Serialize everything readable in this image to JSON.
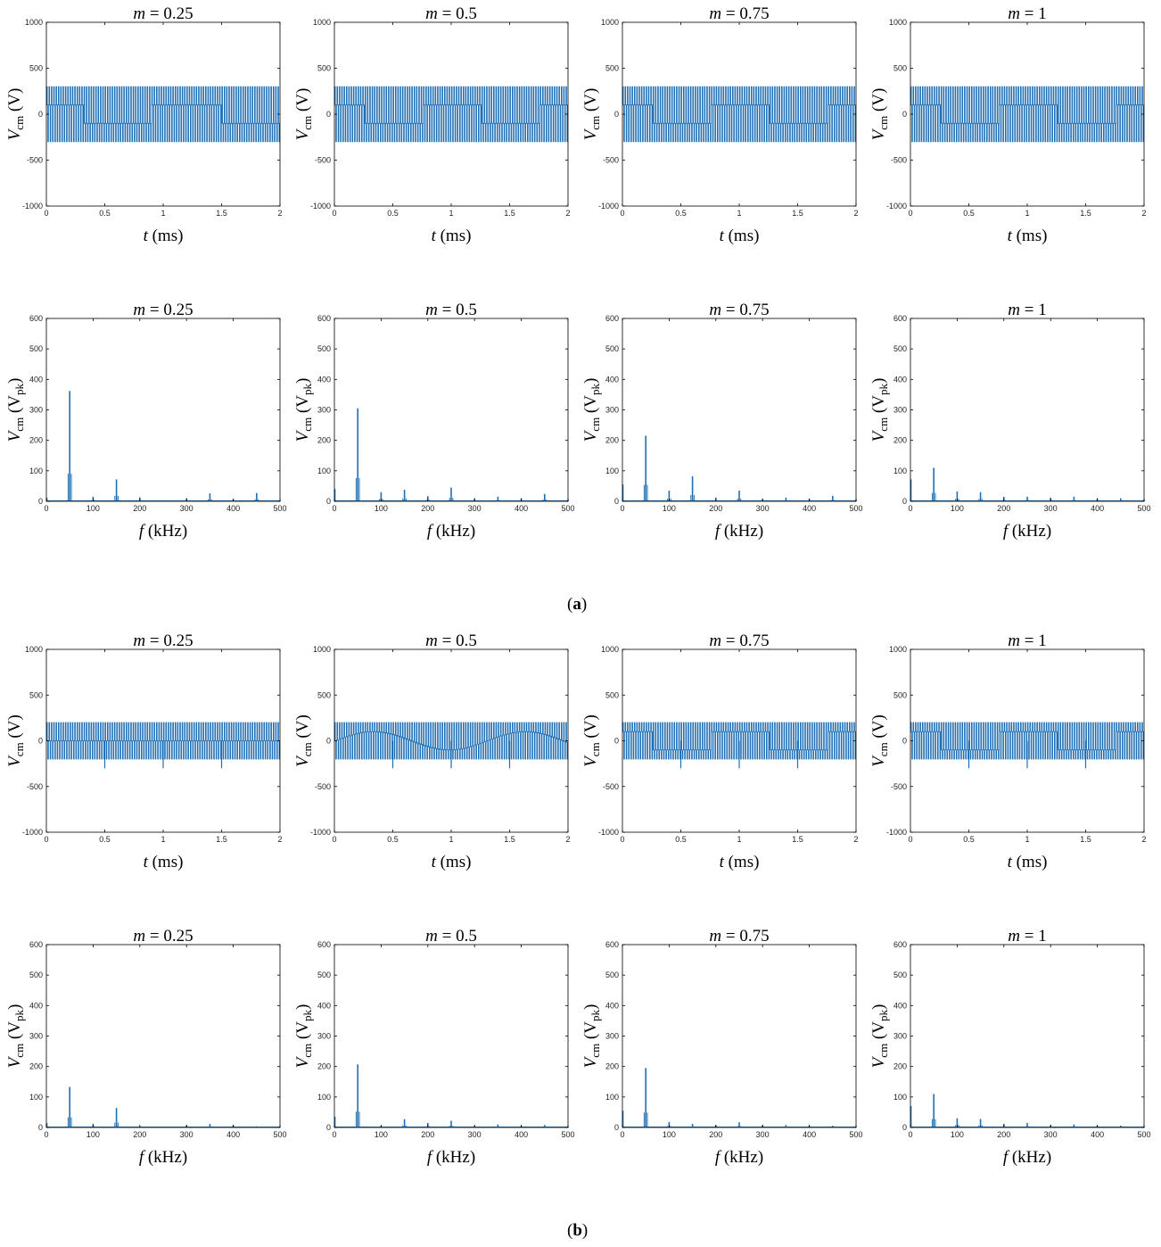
{
  "panel_labels": {
    "a": "a",
    "b": "b"
  },
  "colors": {
    "trace": "#1f6fb5",
    "axes": "#000000"
  },
  "chart_data": [
    {
      "id": "a-t-1",
      "type": "line",
      "title_var": "m",
      "title_value": "0.25",
      "xlabel_var": "t",
      "xlabel_unit": "(ms)",
      "ylabel_var": "V",
      "ylabel_sub": "cm",
      "ylabel_unit": "(V)",
      "xlim": [
        0,
        2
      ],
      "ylim": [
        -1000,
        1000
      ],
      "xticks": [
        "0",
        "0.5",
        "1",
        "1.5",
        "2"
      ],
      "yticks": [
        "-1000",
        "-500",
        "0",
        "500",
        "1000"
      ],
      "waveform": {
        "pwm_upper": 300,
        "pwm_lower": -300,
        "fundamental_amplitude": 100,
        "fundamental_shape": "square",
        "fundamental_period_ms": 1.2,
        "carrier_khz": 50,
        "spikes": [],
        "spike_level": 0
      }
    },
    {
      "id": "a-t-2",
      "type": "line",
      "title_var": "m",
      "title_value": "0.5",
      "xlabel_var": "t",
      "xlabel_unit": "(ms)",
      "ylabel_var": "V",
      "ylabel_sub": "cm",
      "ylabel_unit": "(V)",
      "xlim": [
        0,
        2
      ],
      "ylim": [
        -1000,
        1000
      ],
      "xticks": [
        "0",
        "0.5",
        "1",
        "1.5",
        "2"
      ],
      "yticks": [
        "-1000",
        "-500",
        "0",
        "500",
        "1000"
      ],
      "waveform": {
        "pwm_upper": 300,
        "pwm_lower": -300,
        "fundamental_amplitude": 100,
        "fundamental_shape": "square",
        "fundamental_period_ms": 1.0,
        "carrier_khz": 50,
        "spikes": [],
        "spike_level": 0
      }
    },
    {
      "id": "a-t-3",
      "type": "line",
      "title_var": "m",
      "title_value": "0.75",
      "xlabel_var": "t",
      "xlabel_unit": "(ms)",
      "ylabel_var": "V",
      "ylabel_sub": "cm",
      "ylabel_unit": "(V)",
      "xlim": [
        0,
        2
      ],
      "ylim": [
        -1000,
        1000
      ],
      "xticks": [
        "0",
        "0.5",
        "1",
        "1.5",
        "2"
      ],
      "yticks": [
        "-1000",
        "-500",
        "0",
        "500",
        "1000"
      ],
      "waveform": {
        "pwm_upper": 300,
        "pwm_lower": -300,
        "fundamental_amplitude": 100,
        "fundamental_shape": "square",
        "fundamental_period_ms": 1.0,
        "carrier_khz": 50,
        "spikes": [],
        "spike_level": 0
      }
    },
    {
      "id": "a-t-4",
      "type": "line",
      "title_var": "m",
      "title_value": "1",
      "xlabel_var": "t",
      "xlabel_unit": "(ms)",
      "ylabel_var": "V",
      "ylabel_sub": "cm",
      "ylabel_unit": "(V)",
      "xlim": [
        0,
        2
      ],
      "ylim": [
        -1000,
        1000
      ],
      "xticks": [
        "0",
        "0.5",
        "1",
        "1.5",
        "2"
      ],
      "yticks": [
        "-1000",
        "-500",
        "0",
        "500",
        "1000"
      ],
      "waveform": {
        "pwm_upper": 300,
        "pwm_lower": -300,
        "fundamental_amplitude": 100,
        "fundamental_shape": "square",
        "fundamental_period_ms": 1.0,
        "carrier_khz": 50,
        "spikes": [],
        "spike_level": 0
      }
    },
    {
      "id": "a-f-1",
      "type": "bar",
      "title_var": "m",
      "title_value": "0.25",
      "xlabel_var": "f",
      "xlabel_unit": "(kHz)",
      "ylabel_var": "V",
      "ylabel_sub": "cm",
      "ylabel_unit_main": "(V",
      "ylabel_unit_sub": "pk",
      "ylabel_unit_end": ")",
      "xlim": [
        0,
        500
      ],
      "ylim": [
        0,
        600
      ],
      "xticks": [
        "0",
        "100",
        "200",
        "300",
        "400",
        "500"
      ],
      "yticks": [
        "0",
        "100",
        "200",
        "300",
        "400",
        "500",
        "600"
      ],
      "freq_khz": [
        1,
        50,
        100,
        150,
        200,
        250,
        300,
        350,
        400,
        450,
        500
      ],
      "amplitude_vpk": [
        12,
        362,
        15,
        72,
        13,
        3,
        10,
        26,
        7,
        27,
        3
      ]
    },
    {
      "id": "a-f-2",
      "type": "bar",
      "title_var": "m",
      "title_value": "0.5",
      "xlabel_var": "f",
      "xlabel_unit": "(kHz)",
      "ylabel_var": "V",
      "ylabel_sub": "cm",
      "ylabel_unit_main": "(V",
      "ylabel_unit_sub": "pk",
      "ylabel_unit_end": ")",
      "xlim": [
        0,
        500
      ],
      "ylim": [
        0,
        600
      ],
      "xticks": [
        "0",
        "100",
        "200",
        "300",
        "400",
        "500"
      ],
      "yticks": [
        "0",
        "100",
        "200",
        "300",
        "400",
        "500",
        "600"
      ],
      "freq_khz": [
        1,
        50,
        100,
        150,
        200,
        250,
        300,
        350,
        400,
        450,
        500
      ],
      "amplitude_vpk": [
        40,
        305,
        30,
        38,
        17,
        45,
        10,
        15,
        10,
        24,
        5
      ]
    },
    {
      "id": "a-f-3",
      "type": "bar",
      "title_var": "m",
      "title_value": "0.75",
      "xlabel_var": "f",
      "xlabel_unit": "(kHz)",
      "ylabel_var": "V",
      "ylabel_sub": "cm",
      "ylabel_unit_main": "(V",
      "ylabel_unit_sub": "pk",
      "ylabel_unit_end": ")",
      "xlim": [
        0,
        500
      ],
      "ylim": [
        0,
        600
      ],
      "xticks": [
        "0",
        "100",
        "200",
        "300",
        "400",
        "500"
      ],
      "yticks": [
        "0",
        "100",
        "200",
        "300",
        "400",
        "500",
        "600"
      ],
      "freq_khz": [
        1,
        50,
        100,
        150,
        200,
        250,
        300,
        350,
        400,
        450,
        500
      ],
      "amplitude_vpk": [
        55,
        215,
        35,
        82,
        12,
        35,
        8,
        12,
        8,
        18,
        5
      ]
    },
    {
      "id": "a-f-4",
      "type": "bar",
      "title_var": "m",
      "title_value": "1",
      "xlabel_var": "f",
      "xlabel_unit": "(kHz)",
      "ylabel_var": "V",
      "ylabel_sub": "cm",
      "ylabel_unit_main": "(V",
      "ylabel_unit_sub": "pk",
      "ylabel_unit_end": ")",
      "xlim": [
        0,
        500
      ],
      "ylim": [
        0,
        600
      ],
      "xticks": [
        "0",
        "100",
        "200",
        "300",
        "400",
        "500"
      ],
      "yticks": [
        "0",
        "100",
        "200",
        "300",
        "400",
        "500",
        "600"
      ],
      "freq_khz": [
        1,
        50,
        100,
        150,
        200,
        250,
        300,
        350,
        400,
        450,
        500
      ],
      "amplitude_vpk": [
        72,
        110,
        32,
        30,
        15,
        15,
        12,
        15,
        10,
        10,
        5
      ]
    },
    {
      "id": "b-t-1",
      "type": "line",
      "title_var": "m",
      "title_value": "0.25",
      "xlabel_var": "t",
      "xlabel_unit": "(ms)",
      "ylabel_var": "V",
      "ylabel_sub": "cm",
      "ylabel_unit": "(V)",
      "xlim": [
        0,
        2
      ],
      "ylim": [
        -1000,
        1000
      ],
      "xticks": [
        "0",
        "0.5",
        "1",
        "1.5",
        "2"
      ],
      "yticks": [
        "-1000",
        "-500",
        "0",
        "500",
        "1000"
      ],
      "waveform": {
        "pwm_upper": 200,
        "pwm_lower": -200,
        "fundamental_amplitude": 0,
        "fundamental_shape": "square",
        "fundamental_period_ms": 1.0,
        "carrier_khz": 50,
        "spikes": [
          0.5,
          1.0,
          1.5
        ],
        "spike_level": -300
      }
    },
    {
      "id": "b-t-2",
      "type": "line",
      "title_var": "m",
      "title_value": "0.5",
      "xlabel_var": "t",
      "xlabel_unit": "(ms)",
      "ylabel_var": "V",
      "ylabel_sub": "cm",
      "ylabel_unit": "(V)",
      "xlim": [
        0,
        2
      ],
      "ylim": [
        -1000,
        1000
      ],
      "xticks": [
        "0",
        "0.5",
        "1",
        "1.5",
        "2"
      ],
      "yticks": [
        "-1000",
        "-500",
        "0",
        "500",
        "1000"
      ],
      "waveform": {
        "pwm_upper": 200,
        "pwm_lower": -200,
        "fundamental_amplitude": 100,
        "fundamental_shape": "sine",
        "fundamental_period_ms": 1.3,
        "carrier_khz": 50,
        "spikes": [
          0.5,
          1.0,
          1.5
        ],
        "spike_level": -300
      }
    },
    {
      "id": "b-t-3",
      "type": "line",
      "title_var": "m",
      "title_value": "0.75",
      "xlabel_var": "t",
      "xlabel_unit": "(ms)",
      "ylabel_var": "V",
      "ylabel_sub": "cm",
      "ylabel_unit": "(V)",
      "xlim": [
        0,
        2
      ],
      "ylim": [
        -1000,
        1000
      ],
      "xticks": [
        "0",
        "0.5",
        "1",
        "1.5",
        "2"
      ],
      "yticks": [
        "-1000",
        "-500",
        "0",
        "500",
        "1000"
      ],
      "waveform": {
        "pwm_upper": 200,
        "pwm_lower": -200,
        "fundamental_amplitude": 100,
        "fundamental_shape": "square",
        "fundamental_period_ms": 1.0,
        "carrier_khz": 50,
        "spikes": [
          0.5,
          1.0,
          1.5
        ],
        "spike_level": -300
      }
    },
    {
      "id": "b-t-4",
      "type": "line",
      "title_var": "m",
      "title_value": "1",
      "xlabel_var": "t",
      "xlabel_unit": "(ms)",
      "ylabel_var": "V",
      "ylabel_sub": "cm",
      "ylabel_unit": "(V)",
      "xlim": [
        0,
        2
      ],
      "ylim": [
        -1000,
        1000
      ],
      "xticks": [
        "0",
        "0.5",
        "1",
        "1.5",
        "2"
      ],
      "yticks": [
        "-1000",
        "-500",
        "0",
        "500",
        "1000"
      ],
      "waveform": {
        "pwm_upper": 200,
        "pwm_lower": -200,
        "fundamental_amplitude": 100,
        "fundamental_shape": "square",
        "fundamental_period_ms": 1.0,
        "carrier_khz": 50,
        "spikes": [
          0.5,
          1.0,
          1.5
        ],
        "spike_level": -300
      }
    },
    {
      "id": "b-f-1",
      "type": "bar",
      "title_var": "m",
      "title_value": "0.25",
      "xlabel_var": "f",
      "xlabel_unit": "(kHz)",
      "ylabel_var": "V",
      "ylabel_sub": "cm",
      "ylabel_unit_main": "(V",
      "ylabel_unit_sub": "pk",
      "ylabel_unit_end": ")",
      "xlim": [
        0,
        500
      ],
      "ylim": [
        0,
        600
      ],
      "xticks": [
        "0",
        "100",
        "200",
        "300",
        "400",
        "500"
      ],
      "yticks": [
        "0",
        "100",
        "200",
        "300",
        "400",
        "500",
        "600"
      ],
      "freq_khz": [
        1,
        50,
        100,
        150,
        200,
        250,
        300,
        350,
        400,
        450,
        500
      ],
      "amplitude_vpk": [
        15,
        133,
        12,
        64,
        3,
        3,
        7,
        12,
        7,
        4,
        2
      ]
    },
    {
      "id": "b-f-2",
      "type": "bar",
      "title_var": "m",
      "title_value": "0.5",
      "xlabel_var": "f",
      "xlabel_unit": "(kHz)",
      "ylabel_var": "V",
      "ylabel_sub": "cm",
      "ylabel_unit_main": "(V",
      "ylabel_unit_sub": "pk",
      "ylabel_unit_end": ")",
      "xlim": [
        0,
        500
      ],
      "ylim": [
        0,
        600
      ],
      "xticks": [
        "0",
        "100",
        "200",
        "300",
        "400",
        "500"
      ],
      "yticks": [
        "0",
        "100",
        "200",
        "300",
        "400",
        "500",
        "600"
      ],
      "freq_khz": [
        1,
        50,
        100,
        150,
        200,
        250,
        300,
        350,
        400,
        450,
        500
      ],
      "amplitude_vpk": [
        35,
        207,
        5,
        27,
        15,
        22,
        5,
        10,
        6,
        8,
        3
      ]
    },
    {
      "id": "b-f-3",
      "type": "bar",
      "title_var": "m",
      "title_value": "0.75",
      "xlabel_var": "f",
      "xlabel_unit": "(kHz)",
      "ylabel_var": "V",
      "ylabel_sub": "cm",
      "ylabel_unit_main": "(V",
      "ylabel_unit_sub": "pk",
      "ylabel_unit_end": ")",
      "xlim": [
        0,
        500
      ],
      "ylim": [
        0,
        600
      ],
      "xticks": [
        "0",
        "100",
        "200",
        "300",
        "400",
        "500"
      ],
      "yticks": [
        "0",
        "100",
        "200",
        "300",
        "400",
        "500",
        "600"
      ],
      "freq_khz": [
        1,
        50,
        100,
        150,
        200,
        250,
        300,
        350,
        400,
        450,
        500
      ],
      "amplitude_vpk": [
        55,
        195,
        18,
        12,
        8,
        17,
        8,
        8,
        6,
        6,
        3
      ]
    },
    {
      "id": "b-f-4",
      "type": "bar",
      "title_var": "m",
      "title_value": "1",
      "xlabel_var": "f",
      "xlabel_unit": "(kHz)",
      "ylabel_var": "V",
      "ylabel_sub": "cm",
      "ylabel_unit_main": "(V",
      "ylabel_unit_sub": "pk",
      "ylabel_unit_end": ")",
      "xlim": [
        0,
        500
      ],
      "ylim": [
        0,
        600
      ],
      "xticks": [
        "0",
        "100",
        "200",
        "300",
        "400",
        "500"
      ],
      "yticks": [
        "0",
        "100",
        "200",
        "300",
        "400",
        "500",
        "600"
      ],
      "freq_khz": [
        1,
        50,
        100,
        150,
        200,
        250,
        300,
        350,
        400,
        450,
        500
      ],
      "amplitude_vpk": [
        70,
        110,
        30,
        28,
        12,
        15,
        8,
        10,
        6,
        6,
        4
      ]
    }
  ]
}
